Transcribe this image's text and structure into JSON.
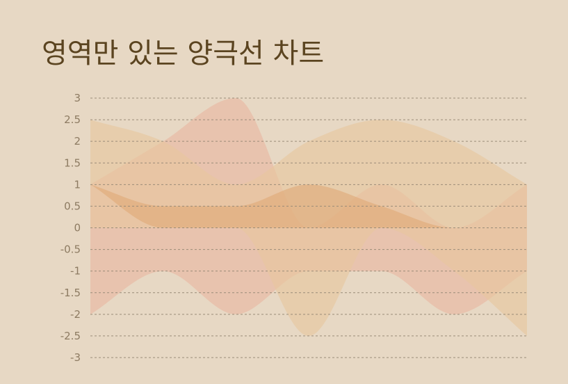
{
  "chart_data": {
    "type": "area",
    "title": "영역만 있는 양극선 차트",
    "xlabel": "",
    "ylabel": "",
    "ylim": [
      -3,
      3
    ],
    "yticks": [
      "3",
      "2.5",
      "2",
      "1.5",
      "1",
      "0.5",
      "0",
      "-0.5",
      "-1",
      "-1.5",
      "-2",
      "-2.5",
      "-3"
    ],
    "grid": true,
    "legend": "none",
    "x": [
      0,
      1,
      2,
      3,
      4,
      5,
      6
    ],
    "series": [
      {
        "upper": [
          1,
          2,
          3,
          0,
          1,
          0,
          1
        ],
        "lower": [
          -2,
          -1,
          -2,
          -1,
          -1,
          -2,
          -1
        ],
        "color": "#eab5a0"
      },
      {
        "upper": [
          2.5,
          2,
          1,
          2,
          2.5,
          2,
          1
        ],
        "lower": [
          0,
          0,
          0,
          -2.5,
          0,
          -1,
          -2.5
        ],
        "color": "#e8c79c"
      },
      {
        "upper": [
          1,
          0.5,
          0.5,
          1,
          0.5,
          0,
          0
        ],
        "lower": [
          1,
          0,
          0,
          0,
          0,
          0,
          0
        ],
        "color": "#e0a876"
      }
    ]
  }
}
